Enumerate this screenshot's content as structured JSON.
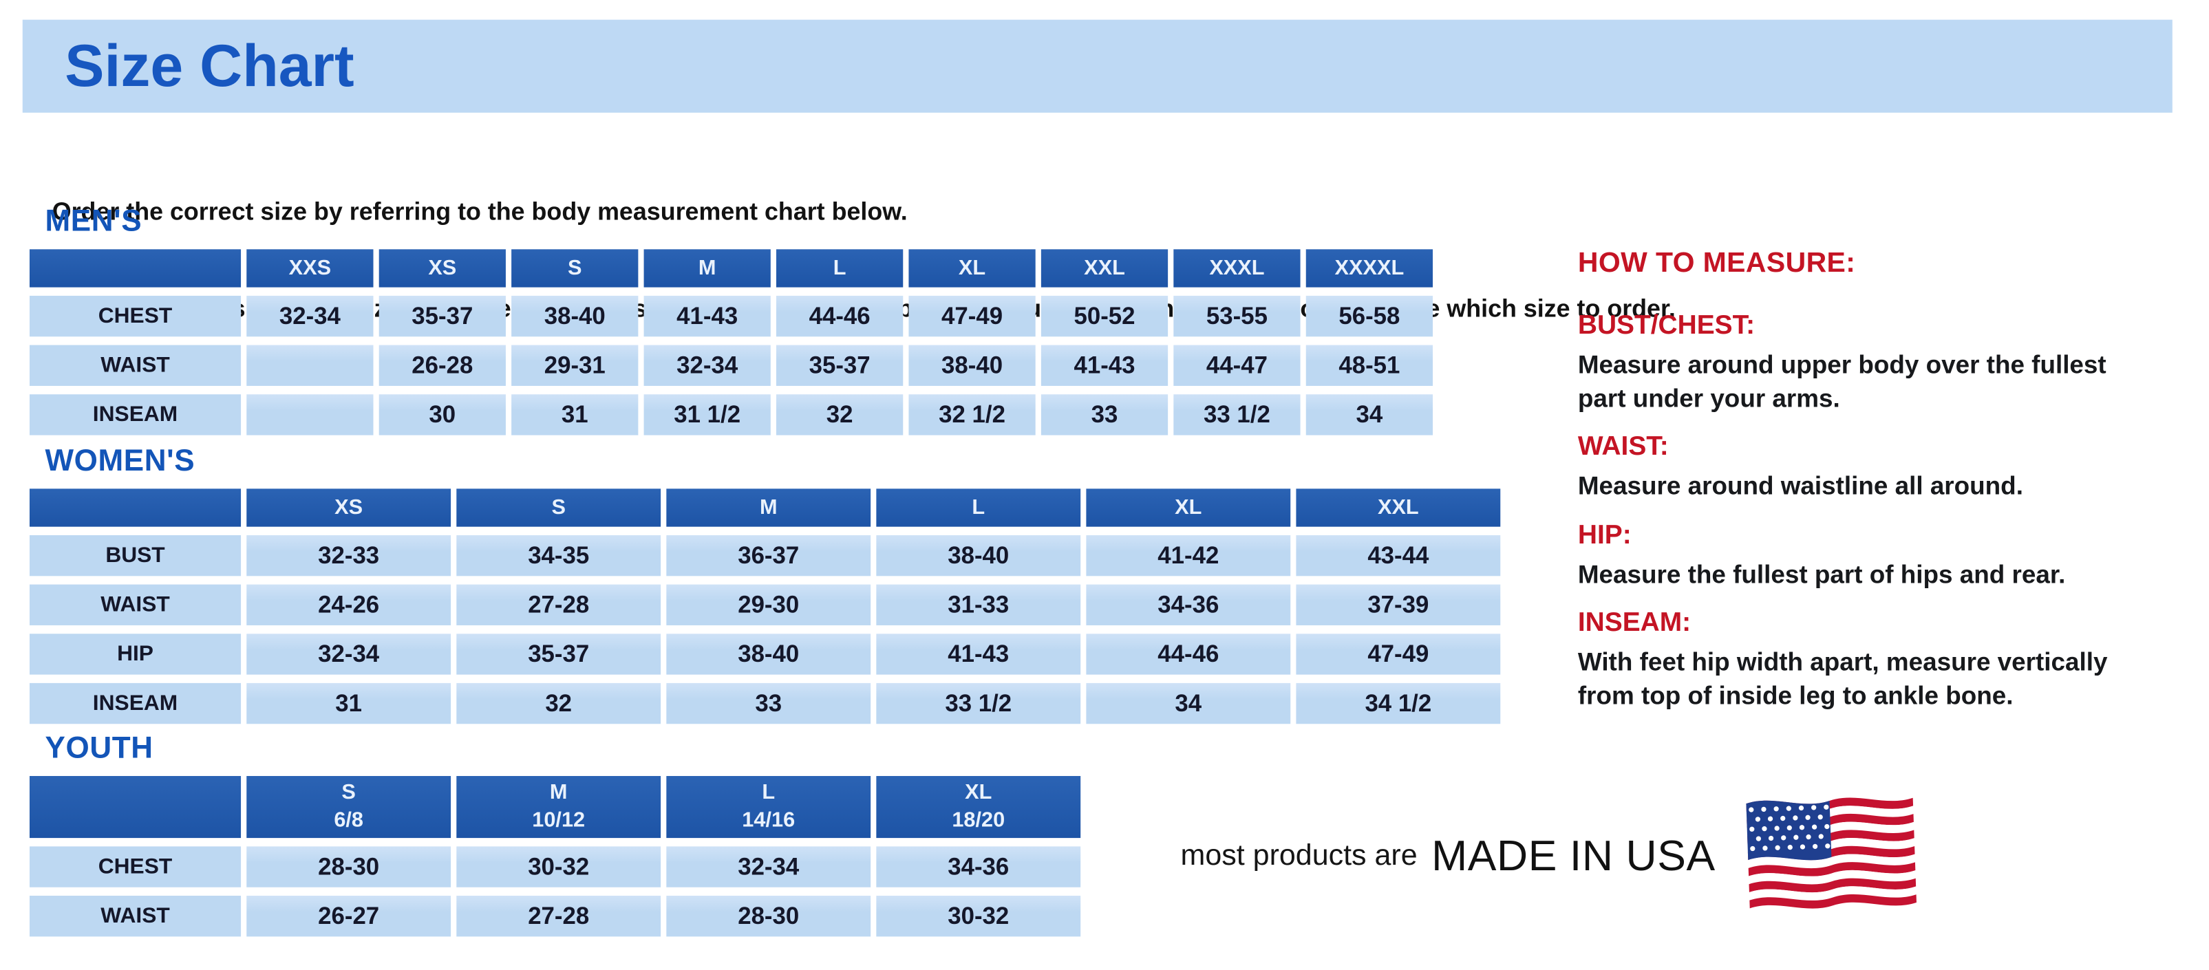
{
  "page": {
    "title": "Size Chart",
    "intro_line1": "Order the correct size by referring to the body measurement chart below.",
    "intro_line2": "Measurements shown on size chart are body measurements.  Find your body measurements on the chart to determine which size to order."
  },
  "tables": [
    {
      "id": "mens",
      "heading": "MEN'S",
      "columns": [
        "XXS",
        "XS",
        "S",
        "M",
        "L",
        "XL",
        "XXL",
        "XXXL",
        "XXXXL"
      ],
      "rows": [
        {
          "label": "CHEST",
          "values": [
            "32-34",
            "35-37",
            "38-40",
            "41-43",
            "44-46",
            "47-49",
            "50-52",
            "53-55",
            "56-58"
          ]
        },
        {
          "label": "WAIST",
          "values": [
            "",
            "26-28",
            "29-31",
            "32-34",
            "35-37",
            "38-40",
            "41-43",
            "44-47",
            "48-51"
          ]
        },
        {
          "label": "INSEAM",
          "values": [
            "",
            "30",
            "31",
            "31 1/2",
            "32",
            "32 1/2",
            "33",
            "33 1/2",
            "34"
          ]
        }
      ]
    },
    {
      "id": "womens",
      "heading": "WOMEN'S",
      "columns": [
        "XS",
        "S",
        "M",
        "L",
        "XL",
        "XXL"
      ],
      "rows": [
        {
          "label": "BUST",
          "values": [
            "32-33",
            "34-35",
            "36-37",
            "38-40",
            "41-42",
            "43-44"
          ]
        },
        {
          "label": "WAIST",
          "values": [
            "24-26",
            "27-28",
            "29-30",
            "31-33",
            "34-36",
            "37-39"
          ]
        },
        {
          "label": "HIP",
          "values": [
            "32-34",
            "35-37",
            "38-40",
            "41-43",
            "44-46",
            "47-49"
          ]
        },
        {
          "label": "INSEAM",
          "values": [
            "31",
            "32",
            "33",
            "33 1/2",
            "34",
            "34 1/2"
          ]
        }
      ]
    },
    {
      "id": "youth",
      "heading": "YOUTH",
      "columns": [
        "S\n6/8",
        "M\n10/12",
        "L\n14/16",
        "XL\n18/20"
      ],
      "rows": [
        {
          "label": "CHEST",
          "values": [
            "28-30",
            "30-32",
            "32-34",
            "34-36"
          ]
        },
        {
          "label": "WAIST",
          "values": [
            "26-27",
            "27-28",
            "28-30",
            "30-32"
          ]
        }
      ]
    }
  ],
  "how_to_measure": {
    "title": "HOW TO MEASURE:",
    "items": [
      {
        "label": "BUST/CHEST:",
        "text": "Measure around upper body over the fullest part under your arms."
      },
      {
        "label": "WAIST:",
        "text": "Measure around waistline all around."
      },
      {
        "label": "HIP:",
        "text": "Measure the fullest part of hips and rear."
      },
      {
        "label": "INSEAM:",
        "text": "With feet hip width apart, measure vertically from top of inside leg to ankle bone."
      }
    ]
  },
  "made_in_usa": {
    "prefix": "most products are",
    "label": "MADE IN USA",
    "flag_icon": "us-flag-icon"
  },
  "colors": {
    "banner_blue": "#bed9f4",
    "header_blue": "#1d54a6",
    "cell_blue": "#bdd8f2",
    "heading_blue": "#1355b8",
    "title_blue": "#1757c0",
    "accent_red": "#c41424",
    "flag_red": "#c51230",
    "flag_navy": "#1f3f8f",
    "text_dark": "#17191c"
  }
}
